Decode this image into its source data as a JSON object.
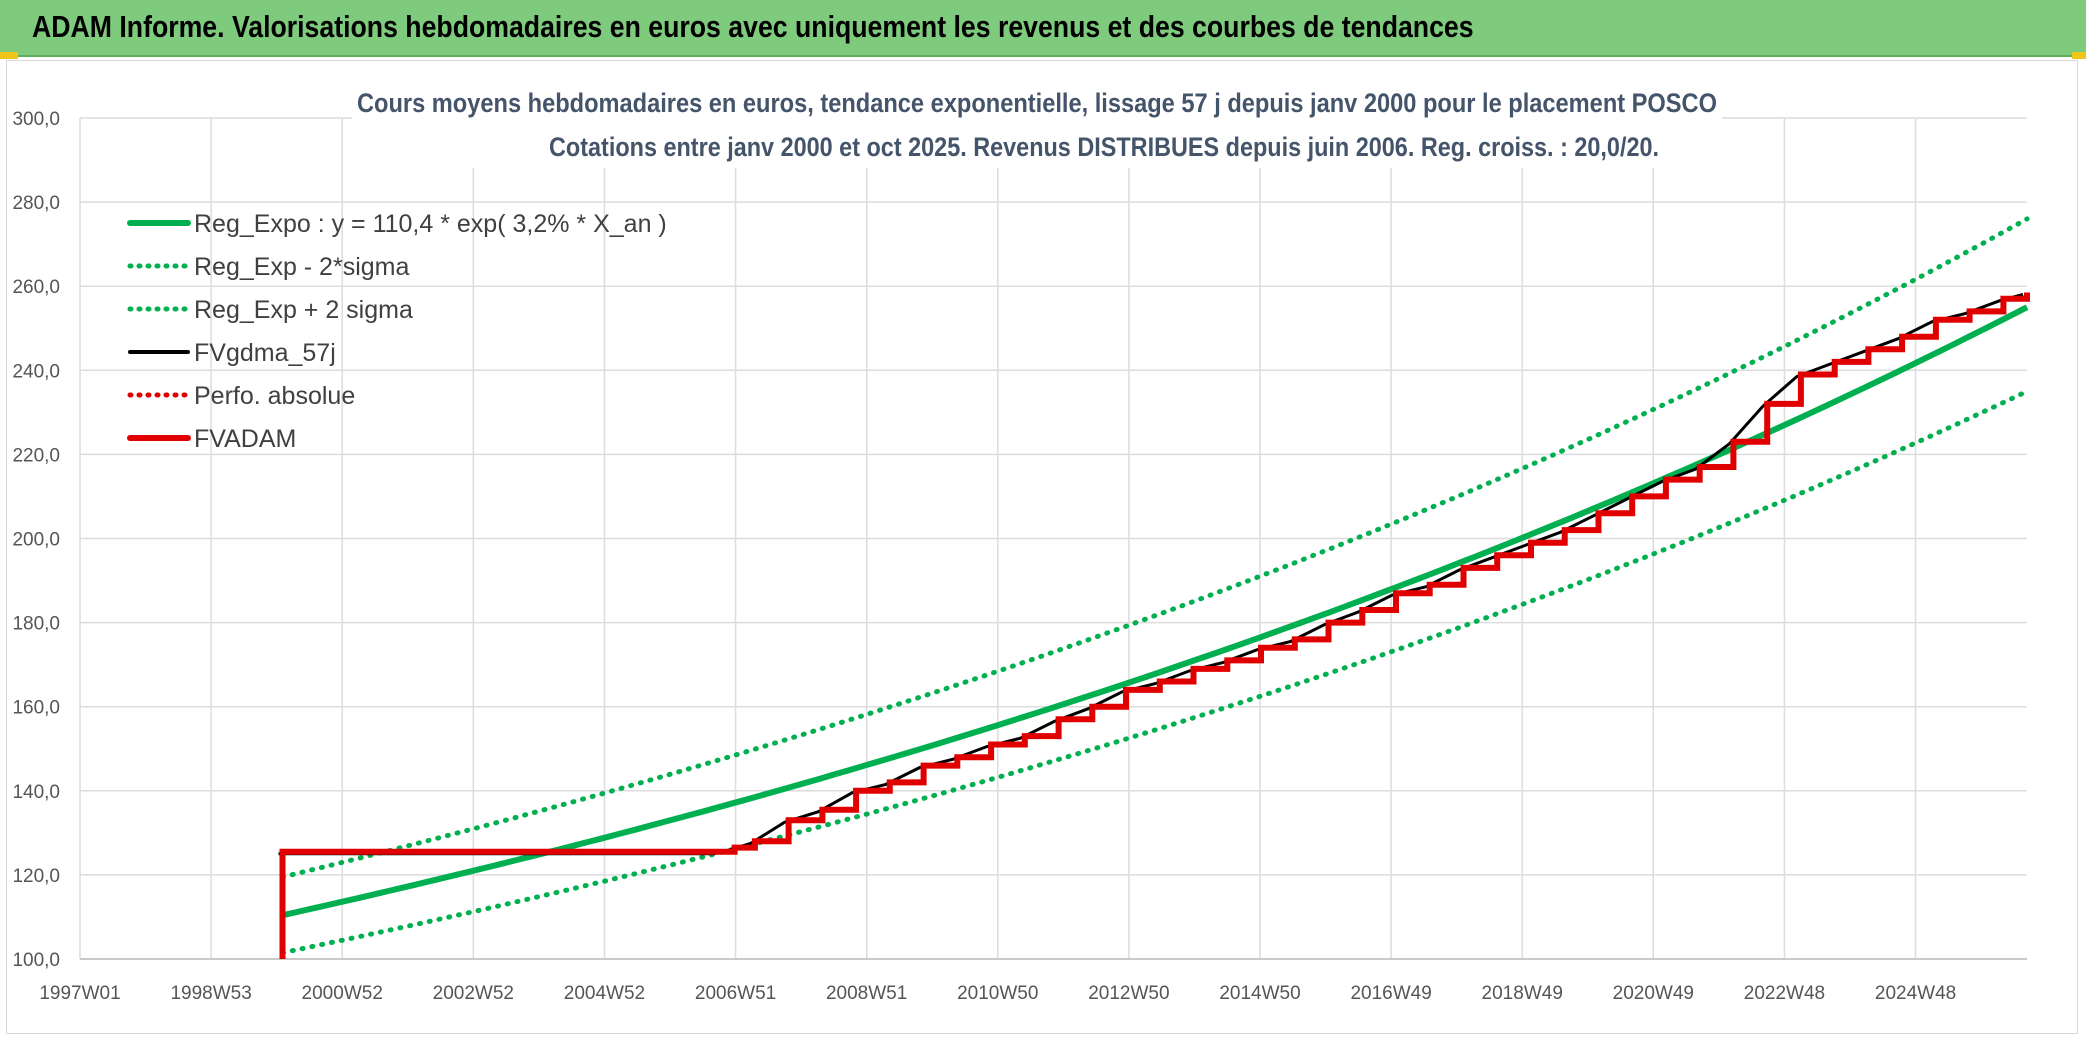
{
  "page_title": "ADAM Informe. Valorisations hebdomadaires en euros avec uniquement les revenus et des courbes de tendances",
  "colors": {
    "banner": "#7fcb7e",
    "reg_expo": "#00b050",
    "fvgdma": "#000000",
    "fvadam": "#e00000",
    "perfo": "#e00000",
    "grid": "#dcdcdc"
  },
  "chart_data": {
    "type": "line",
    "title": "Cours moyens hebdomadaires en euros, tendance exponentielle, lissage 57 j depuis janv 2000 pour le placement POSCO",
    "subtitle": "Cotations entre janv 2000 et oct 2025. Revenus DISTRIBUES depuis juin 2006. Reg. croiss. : 20,0/20.",
    "ylim": [
      100,
      300
    ],
    "y_ticks": [
      "100,0",
      "120,0",
      "140,0",
      "160,0",
      "180,0",
      "200,0",
      "220,0",
      "240,0",
      "260,0",
      "280,0",
      "300,0"
    ],
    "x_ticks": [
      "1997W01",
      "1998W53",
      "2000W52",
      "2002W52",
      "2004W52",
      "2006W51",
      "2008W51",
      "2010W50",
      "2012W50",
      "2014W50",
      "2016W49",
      "2018W49",
      "2020W49",
      "2022W48",
      "2024W48"
    ],
    "xlim": [
      1997.0,
      2025.85
    ],
    "legend_position": "top-left",
    "grid": true,
    "regression": {
      "a": 110.4,
      "rate": 0.032,
      "x0": 2000.0
    },
    "legend": [
      {
        "label": "Reg_Expo : y = 110,4 * exp( 3,2% *  X_an )",
        "style": "solid-thick",
        "color": "#00b050"
      },
      {
        "label": "Reg_Exp - 2*sigma",
        "style": "dotted",
        "color": "#00b050"
      },
      {
        "label": "Reg_Exp + 2 sigma",
        "style": "dotted",
        "color": "#00b050"
      },
      {
        "label": "FVgdma_57j",
        "style": "solid",
        "color": "#000000"
      },
      {
        "label": "Perfo. absolue",
        "style": "dotted",
        "color": "#e00000"
      },
      {
        "label": "FVADAM",
        "style": "solid-thick",
        "color": "#e00000"
      }
    ],
    "series": [
      {
        "name": "Reg_Expo : y = 110,4 * exp( 3,2% *  X_an )",
        "x": [
          2000.0,
          2025.85
        ],
        "values": [
          110.4,
          255.0
        ]
      },
      {
        "name": "Reg_Exp - 2*sigma",
        "x": [
          2000.0,
          2025.85
        ],
        "values": [
          101.5,
          235.0
        ]
      },
      {
        "name": "Reg_Exp + 2 sigma",
        "x": [
          2000.0,
          2025.85
        ],
        "values": [
          119.5,
          276.0
        ]
      },
      {
        "name": "FVADAM",
        "x": [
          2000.0,
          2000.0,
          2006.45,
          2006.7,
          2007.0,
          2007.5,
          2008.0,
          2008.5,
          2009.0,
          2009.5,
          2010.0,
          2010.5,
          2011.0,
          2011.5,
          2012.0,
          2012.5,
          2013.0,
          2013.5,
          2014.0,
          2014.5,
          2015.0,
          2015.5,
          2016.0,
          2016.5,
          2017.0,
          2017.5,
          2018.0,
          2018.5,
          2019.0,
          2019.5,
          2020.0,
          2020.5,
          2021.0,
          2021.5,
          2022.0,
          2022.5,
          2023.0,
          2023.5,
          2024.0,
          2024.5,
          2025.0,
          2025.5,
          2025.85
        ],
        "values": [
          100.0,
          125.5,
          125.5,
          126.5,
          128.0,
          133.0,
          135.5,
          140.0,
          142.0,
          146.0,
          148.0,
          151.0,
          153.0,
          157.0,
          160.0,
          164.0,
          166.0,
          169.0,
          171.0,
          174.0,
          176.0,
          180.0,
          183.0,
          187.0,
          189.0,
          193.0,
          196.0,
          199.0,
          202.0,
          206.0,
          210.0,
          214.0,
          217.0,
          223.0,
          232.0,
          239.0,
          242.0,
          245.0,
          248.0,
          252.0,
          254.0,
          257.0,
          258.5
        ]
      }
    ]
  }
}
